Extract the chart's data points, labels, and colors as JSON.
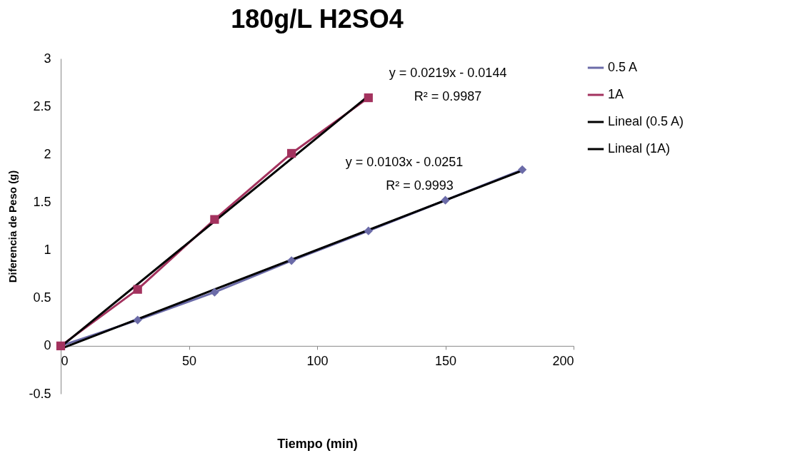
{
  "chart_data": {
    "type": "line",
    "title": "180g/L H2SO4",
    "xlabel": "Tiempo (min)",
    "ylabel": "Diferencia de Peso (g)",
    "xlim": [
      0,
      200
    ],
    "xticks": [
      0,
      50,
      100,
      150,
      200
    ],
    "ylim": [
      -0.5,
      3
    ],
    "yticks": [
      -0.5,
      0,
      0.5,
      1,
      1.5,
      2,
      2.5,
      3
    ],
    "grid": false,
    "legend": "right",
    "series": [
      {
        "name": "0.5 A",
        "color": "#6b6ba8",
        "marker": "diamond",
        "x": [
          0,
          30,
          60,
          90,
          120,
          150,
          180
        ],
        "values": [
          0,
          0.27,
          0.56,
          0.89,
          1.2,
          1.52,
          1.84
        ]
      },
      {
        "name": "1A",
        "color": "#a3325e",
        "marker": "square",
        "x": [
          0,
          30,
          60,
          90,
          120
        ],
        "values": [
          0,
          0.59,
          1.32,
          2.01,
          2.59
        ]
      },
      {
        "name": "Lineal (0.5 A)",
        "color": "#000000",
        "marker": "none",
        "x": [
          0,
          180
        ],
        "values": [
          -0.03,
          1.83
        ]
      },
      {
        "name": "Lineal (1A)",
        "color": "#000000",
        "marker": "none",
        "x": [
          0,
          120
        ],
        "values": [
          -0.01,
          2.61
        ]
      }
    ],
    "annotations": [
      "y = 0.0219x - 0.0144",
      "R² = 0.9987",
      "y = 0.0103x - 0.0251",
      "R² = 0.9993"
    ]
  }
}
